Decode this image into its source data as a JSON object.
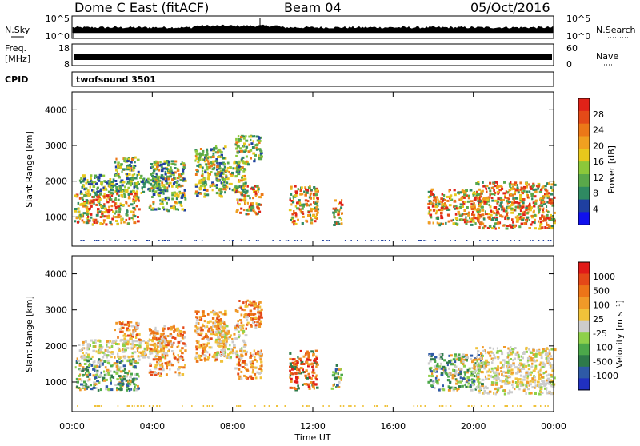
{
  "header": {
    "radar": "Dome C East (fitACF)",
    "beam": "Beam 04",
    "date": "05/Oct/2016"
  },
  "strips": {
    "nsky_label": "N.Sky",
    "nsky_ticks": [
      "10^5",
      "10^0"
    ],
    "nsearch_label": "N.Search",
    "freq_label": "Freq.",
    "freq_unit": "[MHz]",
    "freq_ticks": [
      "18",
      "8"
    ],
    "nave_label": "Nave",
    "nave_ticks": [
      "60",
      "0"
    ],
    "cpid_label": "CPID",
    "cpid_value": "twofsound 3501"
  },
  "x_axis": {
    "label": "Time UT",
    "ticks": [
      "00:00",
      "04:00",
      "08:00",
      "12:00",
      "16:00",
      "20:00",
      "00:00"
    ]
  },
  "chart_data": [
    {
      "type": "heatmap",
      "quantity": "power",
      "ylabel": "Slant Range [km]",
      "yticks": [
        "1000",
        "2000",
        "3000",
        "4000"
      ],
      "ylim": [
        180,
        4500
      ],
      "xlim_hours": [
        0,
        24
      ],
      "colorbar": {
        "label": "Power [dB]",
        "ticks": [
          "4",
          "8",
          "12",
          "16",
          "20",
          "24",
          "28"
        ],
        "colors": [
          "#1010ee",
          "#1f3fa0",
          "#2f8a62",
          "#5aa84a",
          "#8cc83a",
          "#e8c81c",
          "#f0a020",
          "#ec7818",
          "#e44a18",
          "#e02218"
        ]
      },
      "echo_regions": [
        {
          "t": [
            0.1,
            3.3
          ],
          "r": [
            800,
            1700
          ],
          "level": "high"
        },
        {
          "t": [
            0.3,
            4.6
          ],
          "r": [
            1700,
            2200
          ],
          "level": "low"
        },
        {
          "t": [
            2.1,
            3.3
          ],
          "r": [
            2200,
            2700
          ],
          "level": "mid"
        },
        {
          "t": [
            3.8,
            5.6
          ],
          "r": [
            1200,
            2600
          ],
          "level": "mid"
        },
        {
          "t": [
            6.1,
            7.6
          ],
          "r": [
            1600,
            3000
          ],
          "level": "mid"
        },
        {
          "t": [
            7.1,
            8.6
          ],
          "r": [
            1700,
            2600
          ],
          "level": "mid"
        },
        {
          "t": [
            8.1,
            9.4
          ],
          "r": [
            2500,
            3300
          ],
          "level": "mid"
        },
        {
          "t": [
            8.1,
            9.4
          ],
          "r": [
            1100,
            1900
          ],
          "level": "high"
        },
        {
          "t": [
            10.8,
            12.2
          ],
          "r": [
            800,
            1900
          ],
          "level": "high"
        },
        {
          "t": [
            12.9,
            13.4
          ],
          "r": [
            800,
            1500
          ],
          "level": "high"
        },
        {
          "t": [
            17.7,
            20.4
          ],
          "r": [
            800,
            1800
          ],
          "level": "high"
        },
        {
          "t": [
            20.1,
            24.0
          ],
          "r": [
            700,
            2000
          ],
          "level": "high"
        }
      ]
    },
    {
      "type": "heatmap",
      "quantity": "velocity",
      "ylabel": "Slant Range [km]",
      "yticks": [
        "1000",
        "2000",
        "3000",
        "4000"
      ],
      "ylim": [
        180,
        4500
      ],
      "xlim_hours": [
        0,
        24
      ],
      "colorbar": {
        "label": "Velocity [m s⁻¹]",
        "ticks": [
          "1000",
          "500",
          "100",
          "25",
          "-25",
          "-100",
          "-500",
          "-1000"
        ],
        "colors": [
          "#2030c0",
          "#2e5aa6",
          "#2e7a4a",
          "#4ca84a",
          "#8ed04a",
          "#cccccc",
          "#f0c23a",
          "#f09a28",
          "#ec7418",
          "#e44818",
          "#e01a18"
        ]
      },
      "echo_regions": [
        {
          "t": [
            0.1,
            3.3
          ],
          "r": [
            800,
            1700
          ],
          "level": "green"
        },
        {
          "t": [
            0.3,
            4.6
          ],
          "r": [
            1700,
            2200
          ],
          "level": "grey"
        },
        {
          "t": [
            2.1,
            3.3
          ],
          "r": [
            2200,
            2700
          ],
          "level": "orange"
        },
        {
          "t": [
            3.8,
            5.6
          ],
          "r": [
            1200,
            2600
          ],
          "level": "orange"
        },
        {
          "t": [
            6.1,
            7.6
          ],
          "r": [
            1600,
            3000
          ],
          "level": "orange"
        },
        {
          "t": [
            7.1,
            8.6
          ],
          "r": [
            1700,
            2600
          ],
          "level": "grey"
        },
        {
          "t": [
            8.1,
            9.4
          ],
          "r": [
            2500,
            3300
          ],
          "level": "orange"
        },
        {
          "t": [
            8.1,
            9.4
          ],
          "r": [
            1100,
            1900
          ],
          "level": "orange"
        },
        {
          "t": [
            10.8,
            12.2
          ],
          "r": [
            800,
            1900
          ],
          "level": "red"
        },
        {
          "t": [
            12.9,
            13.4
          ],
          "r": [
            800,
            1500
          ],
          "level": "green"
        },
        {
          "t": [
            17.7,
            20.4
          ],
          "r": [
            800,
            1800
          ],
          "level": "green"
        },
        {
          "t": [
            20.1,
            24.0
          ],
          "r": [
            700,
            2000
          ],
          "level": "grey"
        }
      ]
    }
  ]
}
